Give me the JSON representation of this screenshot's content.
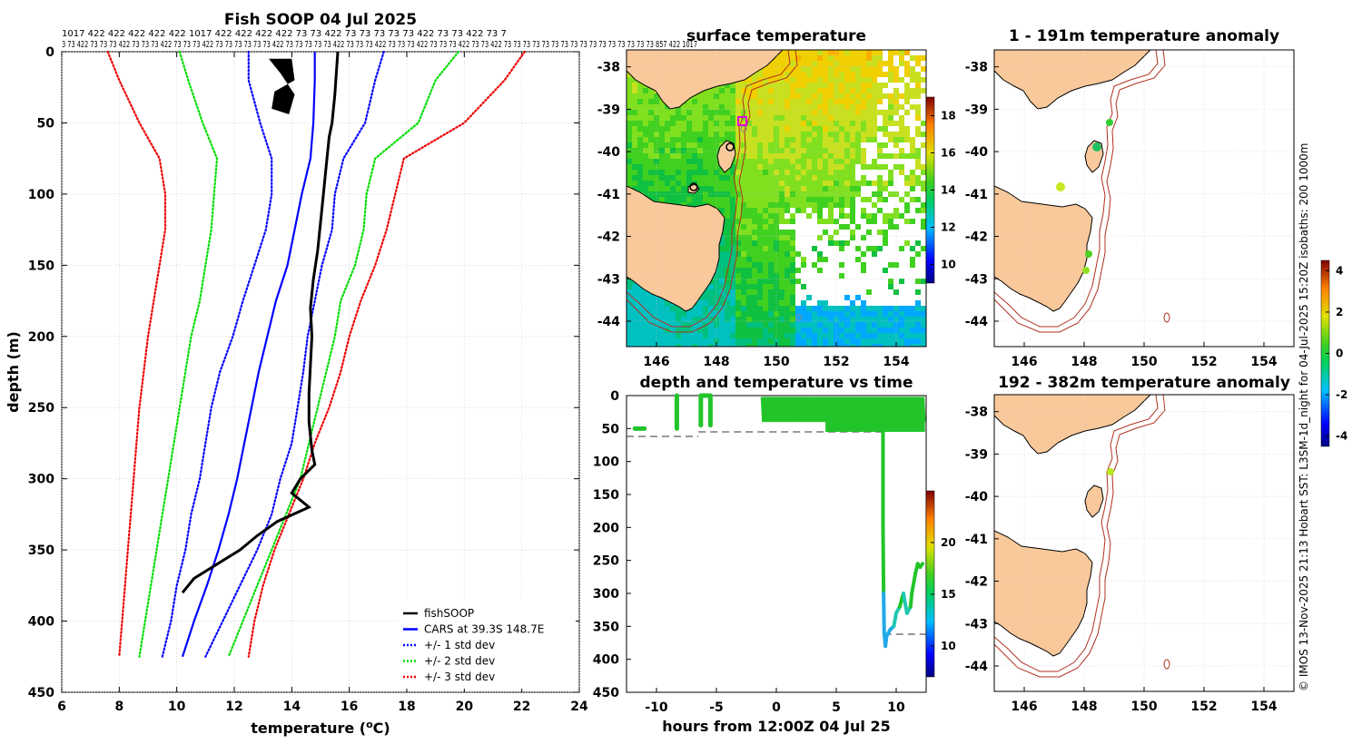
{
  "chart_data": [
    {
      "type": "line",
      "title": "Fish SOOP 04 Jul 2025",
      "xlabel": "temperature (°C)",
      "ylabel": "depth (m)",
      "xlim": [
        6,
        24
      ],
      "ylim": [
        450,
        0
      ],
      "xticks": [
        6,
        8,
        10,
        12,
        14,
        16,
        18,
        20,
        22,
        24
      ],
      "yticks": [
        0,
        50,
        100,
        150,
        200,
        250,
        300,
        350,
        400,
        450
      ],
      "top_labels_row1": "1017 422 422 422 422 422 1017 422 422 422 422 73 73 422 73 73 73 73 73 422 73 73 422 73 7",
      "top_labels_row2": "3 73 422 73 73 73 422 73 73 73 422 73 73 73 422 73 73 73 73 73 73 422 73 73 73 73 73 422 73 73 73 422 73 73 73 422 73 73 73 422 73 73 422 73 73 73 73 73 73 73 73 73 73 73 73 73 73 73 73 857 422 1017",
      "legend": [
        "fishSOOP",
        "CARS at 39.3S 148.7E",
        "+/- 1 std dev",
        "+/- 2 std dev",
        "+/- 3 std dev"
      ],
      "series": [
        {
          "name": "CARS at 39.3S 148.7E",
          "color": "#0000ff",
          "style": "solid",
          "depth": [
            0,
            20,
            50,
            75,
            100,
            125,
            150,
            175,
            200,
            225,
            250,
            275,
            300,
            325,
            350,
            375,
            400,
            425
          ],
          "temp": [
            14.8,
            14.8,
            14.75,
            14.65,
            14.35,
            14.1,
            13.85,
            13.45,
            13.15,
            12.85,
            12.6,
            12.35,
            12.1,
            11.8,
            11.45,
            11.05,
            10.6,
            10.2
          ]
        },
        {
          "name": "+1 std dev",
          "color": "#0000ff",
          "style": "dotted",
          "depth": [
            0,
            20,
            50,
            75,
            100,
            125,
            150,
            175,
            200,
            225,
            250,
            275,
            300,
            325,
            350,
            375,
            400,
            425
          ],
          "temp": [
            17.2,
            16.9,
            16.55,
            15.8,
            15.5,
            15.4,
            15.05,
            14.8,
            14.55,
            14.4,
            14.2,
            14.0,
            13.6,
            13.3,
            12.8,
            12.2,
            11.6,
            11.0
          ]
        },
        {
          "name": "-1 std dev",
          "color": "#0000ff",
          "style": "dotted",
          "depth": [
            0,
            20,
            50,
            75,
            100,
            125,
            150,
            175,
            200,
            225,
            250,
            275,
            300,
            325,
            350,
            375,
            400,
            425
          ],
          "temp": [
            12.5,
            12.5,
            12.9,
            13.3,
            13.3,
            13.1,
            12.7,
            12.3,
            11.95,
            11.5,
            11.2,
            11.0,
            10.8,
            10.5,
            10.3,
            10.0,
            9.8,
            9.5
          ]
        },
        {
          "name": "+2 std dev",
          "color": "#00dd00",
          "style": "dotted",
          "depth": [
            0,
            20,
            50,
            75,
            100,
            125,
            150,
            175,
            200,
            225,
            250,
            275,
            300,
            325,
            350,
            375,
            400,
            425
          ],
          "temp": [
            19.8,
            19.0,
            18.4,
            16.9,
            16.6,
            16.5,
            16.2,
            15.7,
            15.5,
            15.2,
            14.9,
            14.6,
            14.3,
            13.8,
            13.3,
            12.8,
            12.3,
            11.8
          ]
        },
        {
          "name": "-2 std dev",
          "color": "#00dd00",
          "style": "dotted",
          "depth": [
            0,
            20,
            50,
            75,
            100,
            125,
            150,
            175,
            200,
            225,
            250,
            275,
            300,
            325,
            350,
            375,
            400,
            425
          ],
          "temp": [
            10.1,
            10.4,
            10.9,
            11.4,
            11.3,
            11.2,
            11.0,
            10.8,
            10.5,
            10.3,
            10.1,
            9.9,
            9.7,
            9.5,
            9.3,
            9.1,
            8.9,
            8.7
          ]
        },
        {
          "name": "+3 std dev",
          "color": "#ee0000",
          "style": "dotted",
          "depth": [
            0,
            20,
            50,
            75,
            100,
            125,
            150,
            175,
            200,
            225,
            250,
            275,
            300,
            325,
            350,
            375,
            400,
            425
          ],
          "temp": [
            22.1,
            21.4,
            20.0,
            17.9,
            17.6,
            17.3,
            16.9,
            16.4,
            16.0,
            15.7,
            15.3,
            14.8,
            14.4,
            13.9,
            13.4,
            13.0,
            12.7,
            12.5
          ]
        },
        {
          "name": "-3 std dev",
          "color": "#ee0000",
          "style": "dotted",
          "depth": [
            0,
            20,
            50,
            75,
            100,
            125,
            150,
            175,
            200,
            225,
            250,
            275,
            300,
            325,
            350,
            375,
            400,
            425
          ],
          "temp": [
            7.6,
            8.0,
            8.7,
            9.4,
            9.6,
            9.6,
            9.4,
            9.2,
            9.0,
            8.85,
            8.7,
            8.6,
            8.5,
            8.4,
            8.3,
            8.2,
            8.1,
            8.0
          ]
        },
        {
          "name": "fishSOOP",
          "color": "#000000",
          "style": "solid",
          "depth": [
            0,
            30,
            50,
            60,
            80,
            100,
            120,
            140,
            160,
            180,
            200,
            220,
            240,
            260,
            280,
            290,
            300,
            310,
            320,
            330,
            340,
            350,
            360,
            370,
            380
          ],
          "temp": [
            15.6,
            15.5,
            15.4,
            15.3,
            15.2,
            15.1,
            15.0,
            14.9,
            14.75,
            14.65,
            14.7,
            14.65,
            14.6,
            14.6,
            14.7,
            14.8,
            14.3,
            14.0,
            14.6,
            13.5,
            12.8,
            12.2,
            11.4,
            10.6,
            10.2
          ]
        }
      ]
    },
    {
      "type": "heatmap",
      "title": "surface temperature",
      "xticks": [
        146,
        148,
        150,
        152,
        154
      ],
      "yticks": [
        -38,
        -39,
        -40,
        -41,
        -42,
        -43,
        -44
      ],
      "colorbar_ticks": [
        10,
        12,
        14,
        16,
        18
      ],
      "colorbar_range": [
        9,
        19
      ]
    },
    {
      "type": "scatter",
      "title": "depth and temperature vs time",
      "xlabel": "hours from 12:00Z 04 Jul 25",
      "xticks": [
        -10,
        -5,
        0,
        5,
        10
      ],
      "yticks": [
        0,
        50,
        100,
        150,
        200,
        250,
        300,
        350,
        400,
        450
      ],
      "xlim": [
        -12.5,
        12.5
      ],
      "ylim": [
        450,
        0
      ],
      "colorbar_ticks": [
        10,
        15,
        20
      ],
      "colorbar_range": [
        7,
        25
      ]
    },
    {
      "type": "scatter",
      "title": "1 - 191m temperature anomaly",
      "xticks": [
        146,
        148,
        150,
        152,
        154
      ],
      "yticks": [
        -38,
        -39,
        -40,
        -41,
        -42,
        -43,
        -44
      ]
    },
    {
      "type": "scatter",
      "title": "192 - 382m temperature anomaly",
      "xticks": [
        146,
        148,
        150,
        152,
        154
      ],
      "yticks": [
        -38,
        -39,
        -40,
        -41,
        -42,
        -43,
        -44
      ],
      "colorbar_ticks": [
        -4,
        -2,
        0,
        2,
        4
      ],
      "colorbar_range": [
        -4.5,
        4.5
      ]
    }
  ],
  "credit": "© IMOS 13-Nov-2025 21:13 Hobart SST: L3SM-1d_night for 04-Jul-2025 15:20Z isobaths: 200  1000m"
}
